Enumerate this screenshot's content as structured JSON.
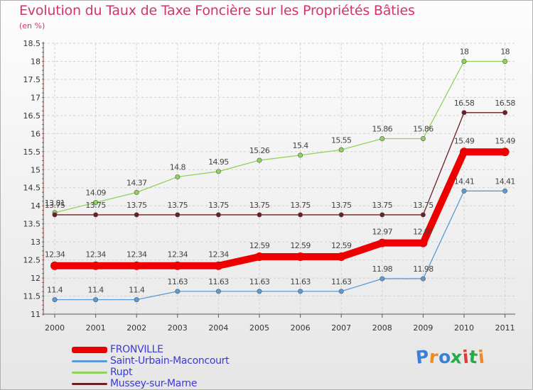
{
  "chart_data": {
    "type": "line",
    "title": "Evolution du Taux de Taxe Foncière sur les Propriétés Bâties",
    "subtitle": "(en %)",
    "x": [
      "2000",
      "2001",
      "2002",
      "2003",
      "2004",
      "2005",
      "2006",
      "2007",
      "2008",
      "2009",
      "2010",
      "2011"
    ],
    "ylim": [
      11,
      18.5
    ],
    "yticks": [
      "11",
      "11.5",
      "12",
      "12.5",
      "13",
      "13.5",
      "14",
      "14.5",
      "15",
      "15.5",
      "16",
      "16.5",
      "17",
      "17.5",
      "18",
      "18.5"
    ],
    "grid": true,
    "legend_position": "bottom-left",
    "series": [
      {
        "name": "FRONVILLE",
        "color": "#ee0000",
        "values": [
          12.34,
          12.34,
          12.34,
          12.34,
          12.34,
          12.59,
          12.59,
          12.59,
          12.97,
          12.97,
          15.49,
          15.49
        ],
        "labels": [
          "12.34",
          "12.34",
          "12.34",
          "12.34",
          "12.34",
          "12.59",
          "12.59",
          "12.59",
          "12.97",
          "12.97",
          "15.49",
          "15.49"
        ]
      },
      {
        "name": "Saint-Urbain-Maconcourt",
        "color": "#5b9bd5",
        "values": [
          11.4,
          11.4,
          11.4,
          11.63,
          11.63,
          11.63,
          11.63,
          11.63,
          11.98,
          11.98,
          14.41,
          14.41
        ],
        "labels": [
          "11.4",
          "11.4",
          "11.4",
          "11.63",
          "11.63",
          "11.63",
          "11.63",
          "11.63",
          "11.98",
          "11.98",
          "14.41",
          "14.41"
        ]
      },
      {
        "name": "Rupt",
        "color": "#8fd35a",
        "values": [
          13.81,
          14.09,
          14.37,
          14.8,
          14.95,
          15.26,
          15.4,
          15.55,
          15.86,
          15.86,
          18,
          18
        ],
        "labels": [
          "13.81",
          "14.09",
          "14.37",
          "14.8",
          "14.95",
          "15.26",
          "15.4",
          "15.55",
          "15.86",
          "15.86",
          "18",
          "18"
        ]
      },
      {
        "name": "Mussey-sur-Marne",
        "color": "#6b1f24",
        "values": [
          13.75,
          13.75,
          13.75,
          13.75,
          13.75,
          13.75,
          13.75,
          13.75,
          13.75,
          13.75,
          16.58,
          16.58
        ],
        "labels": [
          "13.75",
          "13.75",
          "13.75",
          "13.75",
          "13.75",
          "13.75",
          "13.75",
          "13.75",
          "13.75",
          "13.75",
          "16.58",
          "16.58"
        ]
      }
    ]
  },
  "logo": {
    "text": "Proxiti",
    "letter_colors": [
      "#3b7fd6",
      "#f08a1e",
      "#3b7fd6",
      "#2aa84a",
      "#e53935",
      "#2aa84a",
      "#f08a1e"
    ]
  }
}
